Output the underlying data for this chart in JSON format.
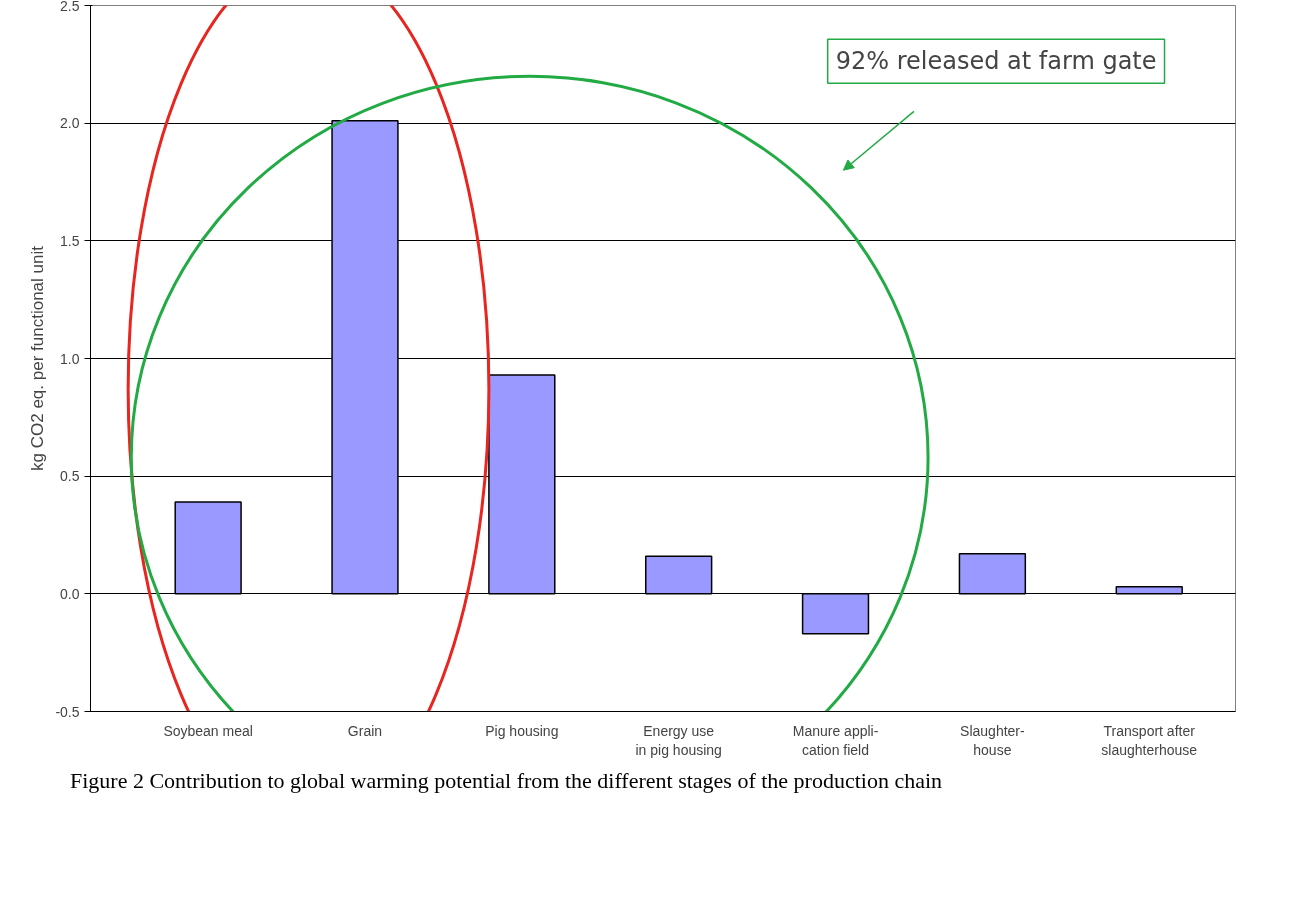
{
  "chart_data": {
    "type": "bar",
    "ylabel": "kg CO2 eq. per functional unit",
    "categories": [
      "Soybean meal",
      "Grain",
      "Pig housing",
      "Energy use\nin pig housing",
      "Manure appli-\ncation field",
      "Slaughter-\nhouse",
      "Transport after\nslaughterhouse"
    ],
    "values": [
      0.39,
      2.01,
      0.93,
      0.16,
      -0.17,
      0.17,
      0.03
    ],
    "color": "#9999ff",
    "ylim": [
      -0.5,
      2.5
    ],
    "yticks": [
      {
        "value": -0.5,
        "label": "-0.5"
      },
      {
        "value": 0,
        "label": "0.0"
      },
      {
        "value": 0.5,
        "label": "0.5"
      },
      {
        "value": 1,
        "label": "1.0"
      },
      {
        "value": 1.5,
        "label": "1.5"
      },
      {
        "value": 2,
        "label": "2.0"
      },
      {
        "value": 2.5,
        "label": "2.5"
      }
    ],
    "grid": "y",
    "annotations": [
      "92% released at farm gate",
      "Figure 2 Contribution to global warming potential from the different stages of the production chain"
    ]
  }
}
